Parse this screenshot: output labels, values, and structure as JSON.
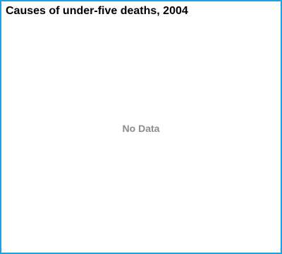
{
  "chart_data": {
    "type": "pie",
    "title": "Causes of under-five deaths, 2004",
    "categories": [],
    "values": [],
    "status_text": "No Data",
    "border_color": "#1ea0e0",
    "status_text_color": "#8c8c8c"
  }
}
